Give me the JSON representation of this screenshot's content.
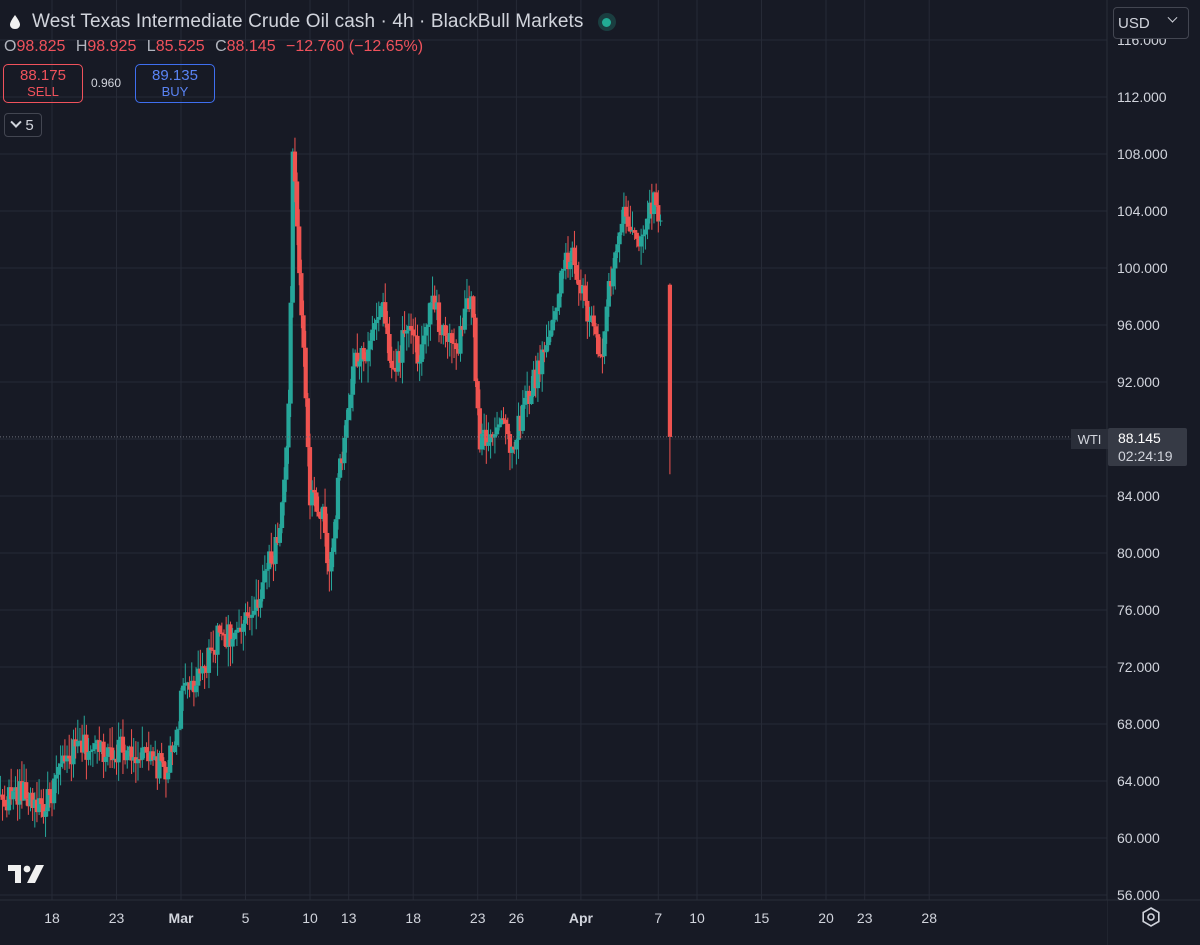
{
  "header": {
    "title": "West Texas Intermediate Crude Oil cash · 4h · BlackBull Markets",
    "symbol_icon": "oil-drop-icon",
    "status_icon": "market-open-dot-icon"
  },
  "ohlc": {
    "o_label": "O",
    "o_value": "98.825",
    "h_label": "H",
    "h_value": "98.925",
    "l_label": "L",
    "l_value": "85.525",
    "c_label": "C",
    "c_value": "88.145",
    "change": "−12.760 (−12.65%)"
  },
  "trade": {
    "sell_price": "88.175",
    "sell_label": "SELL",
    "spread": "0.960",
    "buy_price": "89.135",
    "buy_label": "BUY"
  },
  "indicators_toggle": {
    "count": "5"
  },
  "currency": {
    "value": "USD"
  },
  "price_label": {
    "symbol": "WTI",
    "price": "88.145",
    "countdown": "02:24:19"
  },
  "colors": {
    "background": "#171a25",
    "up": "#26a69a",
    "down": "#ef5350",
    "grid": "#262a36",
    "text": "#d1d4dc"
  },
  "chart_data": {
    "type": "candlestick",
    "interval": "4h",
    "y_ticks": [
      "56.000",
      "60.000",
      "64.000",
      "68.000",
      "72.000",
      "76.000",
      "80.000",
      "84.000",
      "88.000",
      "92.000",
      "96.000",
      "100.000",
      "104.000",
      "108.000",
      "112.000",
      "116.000"
    ],
    "ylim": [
      56,
      116
    ],
    "x_ticks": [
      {
        "label": "18",
        "day": 18,
        "major": false
      },
      {
        "label": "23",
        "day": 23,
        "major": false
      },
      {
        "label": "Mar",
        "day": 28,
        "major": true
      },
      {
        "label": "5",
        "day": 33,
        "major": false
      },
      {
        "label": "10",
        "day": 38,
        "major": false
      },
      {
        "label": "13",
        "day": 41,
        "major": false
      },
      {
        "label": "18",
        "day": 46,
        "major": false
      },
      {
        "label": "23",
        "day": 51,
        "major": false
      },
      {
        "label": "26",
        "day": 54,
        "major": false
      },
      {
        "label": "Apr",
        "day": 59,
        "major": true
      },
      {
        "label": "7",
        "day": 65,
        "major": false
      },
      {
        "label": "10",
        "day": 68,
        "major": false
      },
      {
        "label": "15",
        "day": 73,
        "major": false
      },
      {
        "label": "20",
        "day": 78,
        "major": false
      },
      {
        "label": "23",
        "day": 81,
        "major": false
      },
      {
        "label": "28",
        "day": 86,
        "major": false
      }
    ],
    "anchors": [
      {
        "day": 14.0,
        "price": 62.6
      },
      {
        "day": 15.5,
        "price": 63.2
      },
      {
        "day": 17.5,
        "price": 62.1
      },
      {
        "day": 18.5,
        "price": 64.5
      },
      {
        "day": 20.0,
        "price": 66.4
      },
      {
        "day": 22.0,
        "price": 66.2
      },
      {
        "day": 24.0,
        "price": 66.3
      },
      {
        "day": 26.0,
        "price": 65.1
      },
      {
        "day": 27.0,
        "price": 64.9
      },
      {
        "day": 27.6,
        "price": 67.3
      },
      {
        "day": 28.2,
        "price": 70.5
      },
      {
        "day": 29.5,
        "price": 71.0
      },
      {
        "day": 31.0,
        "price": 74.5
      },
      {
        "day": 32.5,
        "price": 74.0
      },
      {
        "day": 34.0,
        "price": 77.0
      },
      {
        "day": 35.5,
        "price": 81.0
      },
      {
        "day": 36.3,
        "price": 88.0
      },
      {
        "day": 36.7,
        "price": 109.0
      },
      {
        "day": 37.1,
        "price": 100.0
      },
      {
        "day": 37.6,
        "price": 93.0
      },
      {
        "day": 38.0,
        "price": 84.0
      },
      {
        "day": 39.0,
        "price": 83.0
      },
      {
        "day": 39.4,
        "price": 78.5
      },
      {
        "day": 40.5,
        "price": 87.0
      },
      {
        "day": 41.5,
        "price": 93.5
      },
      {
        "day": 42.5,
        "price": 94.0
      },
      {
        "day": 43.5,
        "price": 97.5
      },
      {
        "day": 44.5,
        "price": 92.5
      },
      {
        "day": 45.5,
        "price": 96.0
      },
      {
        "day": 46.5,
        "price": 93.5
      },
      {
        "day": 47.5,
        "price": 97.5
      },
      {
        "day": 48.5,
        "price": 95.0
      },
      {
        "day": 49.5,
        "price": 94.5
      },
      {
        "day": 50.5,
        "price": 98.5
      },
      {
        "day": 51.1,
        "price": 88.0
      },
      {
        "day": 52.0,
        "price": 88.5
      },
      {
        "day": 53.0,
        "price": 89.5
      },
      {
        "day": 53.5,
        "price": 87.0
      },
      {
        "day": 54.5,
        "price": 90.0
      },
      {
        "day": 55.5,
        "price": 92.5
      },
      {
        "day": 56.5,
        "price": 95.0
      },
      {
        "day": 57.5,
        "price": 99.5
      },
      {
        "day": 58.3,
        "price": 101.0
      },
      {
        "day": 59.0,
        "price": 98.5
      },
      {
        "day": 59.8,
        "price": 96.0
      },
      {
        "day": 60.5,
        "price": 93.5
      },
      {
        "day": 61.5,
        "price": 100.5
      },
      {
        "day": 62.5,
        "price": 104.0
      },
      {
        "day": 63.5,
        "price": 102.0
      },
      {
        "day": 64.5,
        "price": 104.5
      },
      {
        "day": 65.3,
        "price": 104.0
      }
    ],
    "last_candle": {
      "open": 98.825,
      "high": 98.925,
      "low": 85.525,
      "close": 88.145,
      "day": 65.9
    },
    "current_price": 88.145
  }
}
